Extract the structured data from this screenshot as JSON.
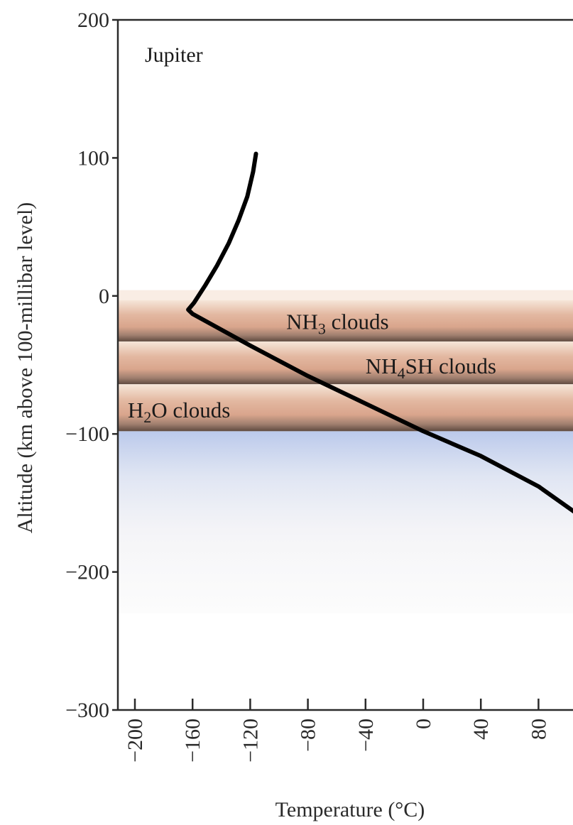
{
  "chart_data": {
    "type": "line",
    "title": "",
    "xlabel": "Temperature (°C)",
    "ylabel": "Altitude (km above 100-millibar level)",
    "xlim": [
      -210,
      110
    ],
    "ylim": [
      -300,
      200
    ],
    "xticks": [
      -200,
      -160,
      -120,
      -80,
      -40,
      0,
      40,
      80
    ],
    "xtick_labels": [
      "−200",
      "−160",
      "−120",
      "−80",
      "−40",
      "0",
      "40",
      "80"
    ],
    "yticks": [
      200,
      100,
      0,
      -100,
      -200,
      -300
    ],
    "ytick_labels": [
      "200",
      "100",
      "0",
      "−100",
      "−200",
      "−300"
    ],
    "series": [
      {
        "name": "",
        "color": "#000000",
        "points": [
          {
            "x": -116,
            "y": 103
          },
          {
            "x": -118,
            "y": 90
          },
          {
            "x": -122,
            "y": 72
          },
          {
            "x": -128,
            "y": 55
          },
          {
            "x": -135,
            "y": 38
          },
          {
            "x": -143,
            "y": 22
          },
          {
            "x": -151,
            "y": 8
          },
          {
            "x": -159,
            "y": -5
          },
          {
            "x": -163,
            "y": -10
          },
          {
            "x": -160,
            "y": -13
          },
          {
            "x": -120,
            "y": -36
          },
          {
            "x": -80,
            "y": -58
          },
          {
            "x": -40,
            "y": -78
          },
          {
            "x": 0,
            "y": -98
          },
          {
            "x": 40,
            "y": -116
          },
          {
            "x": 80,
            "y": -138
          },
          {
            "x": 107,
            "y": -158
          }
        ]
      }
    ],
    "annotations": [
      {
        "id": "planet",
        "text": "Jupiter"
      },
      {
        "id": "nh3",
        "formula": [
          "NH",
          "3",
          ""
        ],
        "suffix": " clouds",
        "x": -95,
        "y": -19
      },
      {
        "id": "nh4sh",
        "formula": [
          "NH",
          "4",
          "SH"
        ],
        "suffix": " clouds",
        "x": -40,
        "y": -51
      },
      {
        "id": "h2o",
        "formula": [
          "H",
          "2",
          "O"
        ],
        "suffix": " clouds",
        "x": -205,
        "y": -83
      }
    ],
    "cloud_bands": [
      {
        "name": "NH3",
        "top": -3,
        "bottom": -33
      },
      {
        "name": "NH4SH",
        "top": -33,
        "bottom": -64
      },
      {
        "name": "H2O",
        "top": -64,
        "bottom": -98
      }
    ],
    "region_colors": {
      "cloud_band": "#dba88f",
      "cloud_edge": "#6b5548",
      "cloud_light": "#f6e6d9",
      "lower_atmosphere": "#b7c6ea"
    },
    "grid": false,
    "legend": "none"
  }
}
